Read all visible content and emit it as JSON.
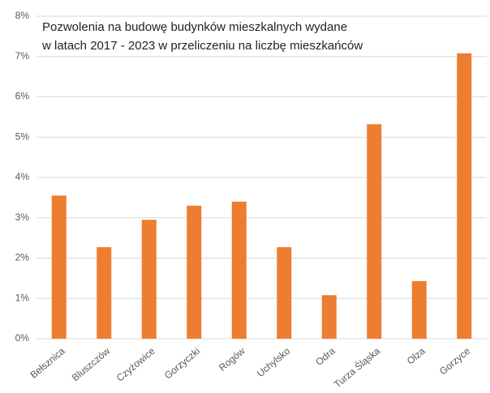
{
  "chart_data": {
    "type": "bar",
    "title": [
      "Pozwolenia na budowę budynków mieszkalnych wydane",
      "w latach 2017 - 2023 w przeliczeniu na liczbę mieszkańców"
    ],
    "categories": [
      "Bełsznica",
      "Bluszczów",
      "Czyżowice",
      "Gorzyczki",
      "Rogów",
      "Uchylsko",
      "Odra",
      "Turza Śląska",
      "Olza",
      "Gorzyce"
    ],
    "values": [
      3.55,
      2.27,
      2.95,
      3.3,
      3.4,
      2.27,
      1.08,
      5.32,
      1.43,
      7.08
    ],
    "color": "#ed7d31",
    "ylim": [
      0,
      8
    ],
    "yticks": [
      {
        "value": 0,
        "label": "0%"
      },
      {
        "value": 1,
        "label": "1%"
      },
      {
        "value": 2,
        "label": "2%"
      },
      {
        "value": 3,
        "label": "3%"
      },
      {
        "value": 4,
        "label": "4%"
      },
      {
        "value": 5,
        "label": "5%"
      },
      {
        "value": 6,
        "label": "6%"
      },
      {
        "value": 7,
        "label": "7%"
      },
      {
        "value": 8,
        "label": "8%"
      }
    ],
    "grid": true
  }
}
